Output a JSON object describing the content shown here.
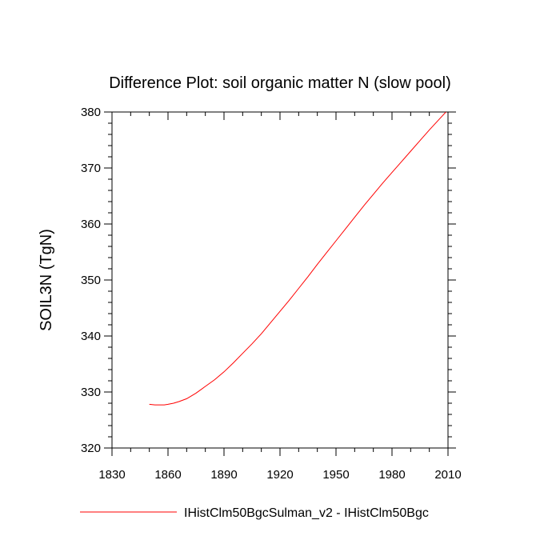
{
  "chart_data": {
    "type": "line",
    "title": "Difference Plot: soil organic matter N (slow pool)",
    "xlabel": "",
    "ylabel": "SOIL3N  (TgN)",
    "xlim": [
      1830,
      2010
    ],
    "ylim": [
      320,
      380
    ],
    "xticks": [
      1830,
      1860,
      1890,
      1920,
      1950,
      1980,
      2010
    ],
    "yticks": [
      320,
      330,
      340,
      350,
      360,
      370,
      380
    ],
    "grid": false,
    "legend_position": "bottom",
    "series": [
      {
        "name": "IHistClm50BgcSulman_v2 - IHistClm50Bgc",
        "color": "#ff0000",
        "x": [
          1850,
          1853,
          1855,
          1858,
          1860,
          1863,
          1866,
          1870,
          1875,
          1880,
          1885,
          1890,
          1895,
          1900,
          1905,
          1910,
          1915,
          1920,
          1925,
          1930,
          1935,
          1940,
          1945,
          1950,
          1955,
          1960,
          1965,
          1970,
          1975,
          1980,
          1985,
          1990,
          1995,
          2000,
          2005,
          2010
        ],
        "values": [
          327.8,
          327.7,
          327.7,
          327.7,
          327.8,
          328.0,
          328.3,
          328.8,
          329.8,
          331.0,
          332.2,
          333.6,
          335.2,
          336.9,
          338.6,
          340.4,
          342.4,
          344.4,
          346.4,
          348.5,
          350.6,
          352.8,
          354.9,
          357.0,
          359.1,
          361.2,
          363.3,
          365.3,
          367.3,
          369.2,
          371.1,
          373.0,
          374.9,
          376.8,
          378.6,
          380.4
        ]
      }
    ]
  }
}
